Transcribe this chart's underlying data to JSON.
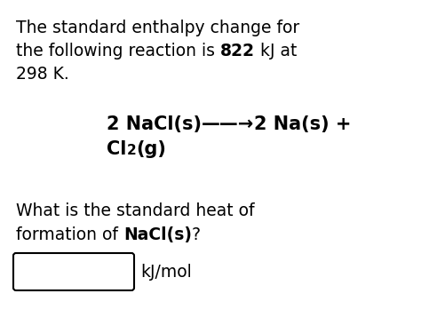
{
  "bg_color": "#ffffff",
  "line1": "The standard enthalpy change for",
  "line2_normal": "the following reaction is ",
  "line2_bold": "822",
  "line2_end": " kJ at",
  "line3": "298 K.",
  "rxn_part1": "2 NaCl(s)",
  "rxn_arrow": "——→",
  "rxn_part2": "2 Na(s) +",
  "rxn_cl": "Cl",
  "rxn_sub": "2",
  "rxn_g": "(g)",
  "q_line1": "What is the standard heat of",
  "q_line2_normal": "formation of ",
  "q_line2_bold": "NaCl(s)",
  "q_line2_end": "?",
  "answer_unit": "kJ/mol",
  "fs_main": 13.5,
  "fs_reaction": 15,
  "text_color": "#000000"
}
